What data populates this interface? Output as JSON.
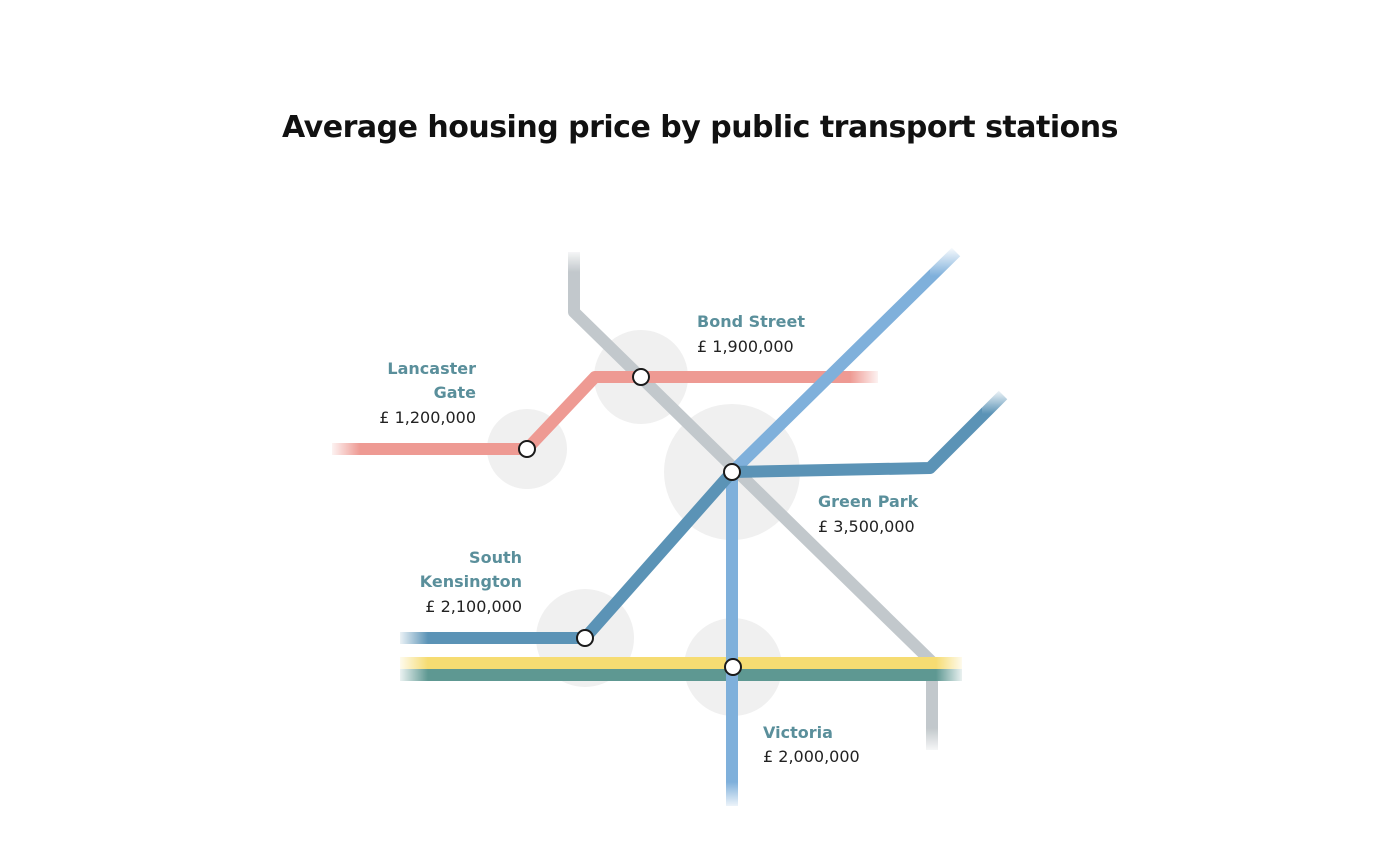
{
  "title": "Average housing price by public transport stations",
  "colors": {
    "red_line": "#ee9a93",
    "grey_line": "#c2c8cc",
    "light_blue_line": "#7fb0db",
    "steel_blue_line": "#5b93b6",
    "yellow_line": "#f6dc72",
    "teal_line": "#5e9892",
    "station_label": "#5a8f9b",
    "halo": "#f0f0f0"
  },
  "stations": [
    {
      "id": "bond-street",
      "name_lines": [
        "Bond Street"
      ],
      "price": "£ 1,900,000"
    },
    {
      "id": "lancaster-gate",
      "name_lines": [
        "Lancaster",
        "Gate"
      ],
      "price": "£ 1,200,000"
    },
    {
      "id": "green-park",
      "name_lines": [
        "Green Park"
      ],
      "price": "£ 3,500,000"
    },
    {
      "id": "south-kensington",
      "name_lines": [
        "South",
        "Kensington"
      ],
      "price": "£ 2,100,000"
    },
    {
      "id": "victoria",
      "name_lines": [
        "Victoria"
      ],
      "price": "£ 2,000,000"
    }
  ]
}
